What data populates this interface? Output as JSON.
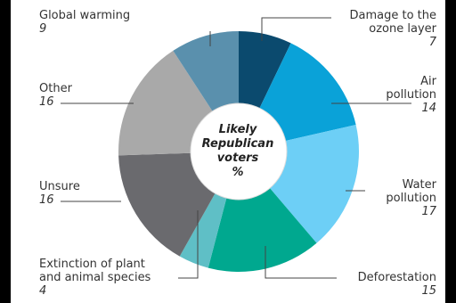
{
  "chart_data": {
    "type": "pie",
    "donut": true,
    "center_label": [
      "Likely",
      "Republican",
      "voters",
      "%"
    ],
    "slices": [
      {
        "label": "Damage to the ozone layer",
        "value": 7,
        "color": "#0b4a6e"
      },
      {
        "label": "Air pollution",
        "value": 14,
        "color": "#0aa2d8"
      },
      {
        "label": "Water pollution",
        "value": 17,
        "color": "#6dcff6"
      },
      {
        "label": "Deforestation",
        "value": 15,
        "color": "#00a88f"
      },
      {
        "label": "Extinction of plant and animal species",
        "value": 4,
        "color": "#5fbfc6"
      },
      {
        "label": "Unsure",
        "value": 16,
        "color": "#6a6a6e"
      },
      {
        "label": "Other",
        "value": 16,
        "color": "#a9a9a9"
      },
      {
        "label": "Global warming",
        "value": 9,
        "color": "#5a90ad"
      }
    ]
  },
  "labels": {
    "ozone": {
      "line1": "Damage to the",
      "line2": "ozone layer",
      "value": "7"
    },
    "air": {
      "line1": "Air",
      "line2": "pollution",
      "value": "14"
    },
    "water": {
      "line1": "Water",
      "line2": "pollution",
      "value": "17"
    },
    "deforestation": {
      "line1": "Deforestation",
      "value": "15"
    },
    "extinction": {
      "line1": "Extinction of plant",
      "line2": "and animal species",
      "value": "4"
    },
    "unsure": {
      "line1": "Unsure",
      "value": "16"
    },
    "other": {
      "line1": "Other",
      "value": "16"
    },
    "global": {
      "line1": "Global warming",
      "value": "9"
    }
  }
}
